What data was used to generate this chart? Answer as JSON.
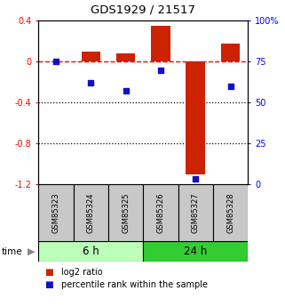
{
  "title": "GDS1929 / 21517",
  "samples": [
    "GSM85323",
    "GSM85324",
    "GSM85325",
    "GSM85326",
    "GSM85327",
    "GSM85328"
  ],
  "log2_ratio": [
    0.0,
    0.1,
    0.08,
    0.35,
    -1.1,
    0.18
  ],
  "percentile_rank": [
    75,
    62,
    57,
    70,
    3,
    60
  ],
  "groups": [
    {
      "label": "6 h",
      "indices": [
        0,
        1,
        2
      ],
      "color_light": "#ccffcc",
      "color_dark": "#ccffcc"
    },
    {
      "label": "24 h",
      "indices": [
        3,
        4,
        5
      ],
      "color_light": "#44cc44",
      "color_dark": "#44cc44"
    }
  ],
  "ylim_left": [
    -1.2,
    0.4
  ],
  "ylim_right": [
    0,
    100
  ],
  "yticks_left": [
    0.4,
    0.0,
    -0.4,
    -0.8,
    -1.2
  ],
  "yticks_right": [
    100,
    75,
    50,
    25,
    0
  ],
  "ytick_labels_left": [
    "0.4",
    "0",
    "-0.4",
    "-0.8",
    "-1.2"
  ],
  "ytick_labels_right": [
    "100%",
    "75",
    "50",
    "25",
    "0"
  ],
  "hline_y": 0.0,
  "dotted_lines": [
    -0.4,
    -0.8
  ],
  "bar_color": "#cc2200",
  "dot_color": "#1111cc",
  "time_label": "time",
  "arrow_char": "▶",
  "legend_bar_label": "log2 ratio",
  "legend_dot_label": "percentile rank within the sample",
  "sample_bg": "#c8c8c8",
  "group_colors": [
    "#bbffbb",
    "#33cc33"
  ]
}
